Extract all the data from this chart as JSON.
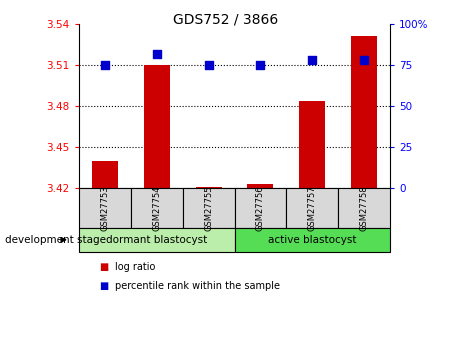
{
  "title": "GDS752 / 3866",
  "samples": [
    "GSM27753",
    "GSM27754",
    "GSM27755",
    "GSM27756",
    "GSM27757",
    "GSM27758"
  ],
  "log_ratio": [
    3.44,
    3.51,
    3.421,
    3.423,
    3.484,
    3.531
  ],
  "percentile_rank": [
    75,
    82,
    75,
    75,
    78,
    78
  ],
  "log_ratio_base": 3.42,
  "ylim_left": [
    3.42,
    3.54
  ],
  "ylim_right": [
    0,
    100
  ],
  "yticks_left": [
    3.42,
    3.45,
    3.48,
    3.51,
    3.54
  ],
  "yticks_right": [
    0,
    25,
    50,
    75,
    100
  ],
  "ytick_labels_left": [
    "3.42",
    "3.45",
    "3.48",
    "3.51",
    "3.54"
  ],
  "ytick_labels_right": [
    "0",
    "25",
    "50",
    "75",
    "100%"
  ],
  "groups": [
    {
      "label": "dormant blastocyst",
      "start": 0,
      "end": 3,
      "color": "#bbeeaa"
    },
    {
      "label": "active blastocyst",
      "start": 3,
      "end": 6,
      "color": "#55dd55"
    }
  ],
  "group_label": "development stage",
  "bar_color": "#cc0000",
  "dot_color": "#0000cc",
  "sample_box_color": "#d8d8d8",
  "plot_bg": "#ffffff",
  "bar_width": 0.5,
  "dot_size": 40,
  "gridline_color": "#000000",
  "gridline_style": "dotted",
  "spine_color": "#000000"
}
